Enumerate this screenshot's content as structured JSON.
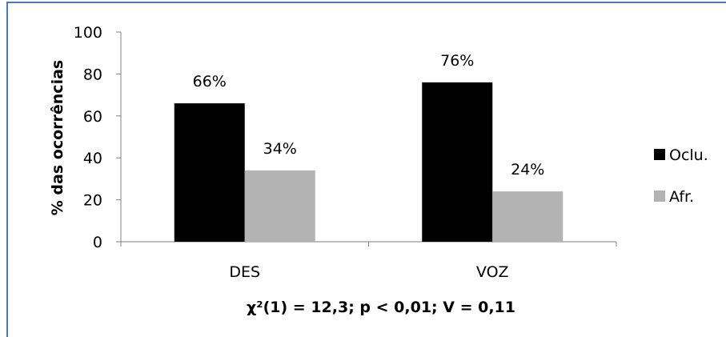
{
  "chart_data": {
    "type": "bar",
    "categories": [
      "DES",
      "VOZ"
    ],
    "series": [
      {
        "name": "Oclu.",
        "values": [
          66,
          76
        ],
        "labels": [
          "66%",
          "76%"
        ],
        "color": "#000000"
      },
      {
        "name": "Afr.",
        "values": [
          34,
          24
        ],
        "labels": [
          "34%",
          "24%"
        ],
        "color": "#b3b3b3"
      }
    ],
    "ylim": [
      0,
      100
    ],
    "yticks": [
      "0",
      "20",
      "40",
      "60",
      "80",
      "100"
    ],
    "ylabel": "% das ocorrências",
    "xlabel": "χ²(1) = 12,3; p < 0,01; V = 0,11",
    "grid": false,
    "legend": "right"
  },
  "colors": {
    "frame": "#4a7ab8",
    "axis": "#808080"
  }
}
